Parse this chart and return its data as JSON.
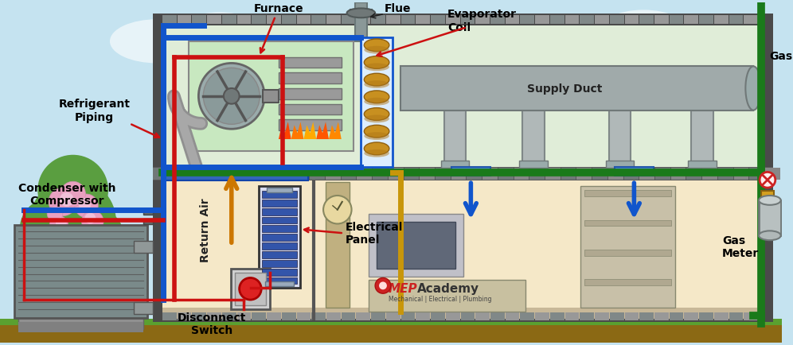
{
  "figsize": [
    9.96,
    4.35
  ],
  "dpi": 100,
  "colors": {
    "sky": "#C5E3F0",
    "ground_brown": "#8B6914",
    "grass": "#5aA030",
    "house_bg": "#F5E8C8",
    "attic_bg": "#E0EDD8",
    "roof_dark": "#4A4A4A",
    "wall_dark": "#3A3A3A",
    "blue_pipe": "#1155CC",
    "red_pipe": "#CC1111",
    "green_pipe": "#1A7A1A",
    "yellow_pipe": "#C8960A",
    "duct_gray": "#A0AAAA",
    "duct_dark": "#707878",
    "furnace_bg": "#C8E8C0",
    "evap_border": "#1155CC",
    "evap_gold": "#C8960A",
    "evap_blue": "#4488CC",
    "panel_blue": "#3355AA",
    "panel_bg": "#D8DCF0",
    "disc_gray": "#B0B0B0",
    "disc_red": "#DD2222",
    "gas_meter_gray": "#C0C0C0",
    "black": "#222222",
    "label_red_arrow": "#CC1111"
  },
  "labels": {
    "furnace": "Furnace",
    "flue": "Flue",
    "evap_coil": "Evaporator\nCoil",
    "supply_duct": "Supply Duct",
    "gas": "Gas",
    "refrig": "Refrigerant\nPiping",
    "condenser": "Condenser with\nCompressor",
    "return_air": "Return Air",
    "elec_panel": "Electrical\nPanel",
    "disc_switch": "Disconnect\nSwitch",
    "gas_meter": "Gas\nMeter",
    "mep": "MEP",
    "academy": "Academy",
    "mep_sub": "Mechanical | Electrical | Plumbing"
  }
}
